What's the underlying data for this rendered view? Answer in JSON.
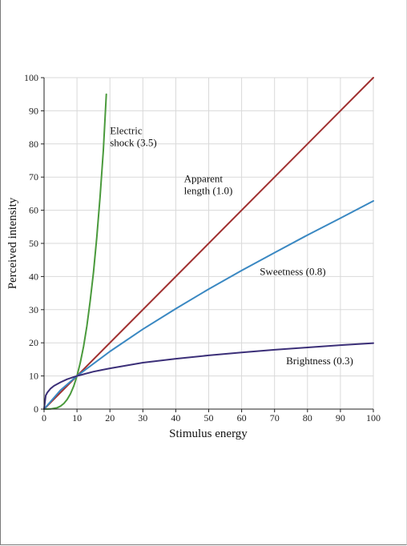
{
  "chart_data": {
    "type": "line",
    "xlabel": "Stimulus energy",
    "ylabel": "Perceived intensity",
    "xlim": [
      0,
      100
    ],
    "ylim": [
      0,
      100
    ],
    "xticks": [
      0,
      10,
      20,
      30,
      40,
      50,
      60,
      70,
      80,
      90,
      100
    ],
    "yticks": [
      0,
      10,
      20,
      30,
      40,
      50,
      60,
      70,
      80,
      90,
      100
    ],
    "grid": true,
    "series": [
      {
        "key": "electric",
        "name": "Electric shock (3.5)",
        "color": "#4a9a3c",
        "x": [
          0,
          2,
          4,
          5,
          6,
          7,
          8,
          9,
          10,
          11,
          12,
          13,
          14,
          15,
          16,
          17,
          18,
          18.9
        ],
        "y": [
          0,
          0.04,
          0.4,
          0.9,
          1.7,
          2.9,
          4.6,
          6.9,
          10,
          14,
          18.9,
          25,
          32.5,
          41.3,
          51.8,
          64,
          78.1,
          95
        ]
      },
      {
        "key": "length",
        "name": "Apparent length (1.0)",
        "color": "#a03030",
        "x": [
          0,
          100
        ],
        "y": [
          0,
          100
        ]
      },
      {
        "key": "sweetness",
        "name": "Sweetness (0.8)",
        "color": "#3a88c2",
        "x": [
          0,
          5,
          10,
          20,
          30,
          40,
          50,
          60,
          70,
          80,
          90,
          100
        ],
        "y": [
          0,
          5.7,
          10,
          17.4,
          24.1,
          30.3,
          36.2,
          41.8,
          47.2,
          52.5,
          57.6,
          62.8
        ]
      },
      {
        "key": "brightness",
        "name": "Brightness (0.3)",
        "color": "#3b2f78",
        "x": [
          0,
          0.5,
          1,
          2,
          3,
          5,
          7,
          10,
          15,
          20,
          30,
          40,
          50,
          60,
          70,
          80,
          90,
          100
        ],
        "y": [
          0,
          4.1,
          5,
          6.2,
          7.0,
          8.1,
          9.0,
          10,
          11.3,
          12.3,
          14.0,
          15.2,
          16.2,
          17.1,
          17.9,
          18.6,
          19.3,
          19.9
        ]
      }
    ],
    "annotations": [
      {
        "key": "electric",
        "lines": [
          "Electric",
          "shock (3.5)"
        ],
        "x": 20,
        "y": 83
      },
      {
        "key": "length",
        "lines": [
          "Apparent",
          "length (1.0)"
        ],
        "x": 42.5,
        "y": 68.5
      },
      {
        "key": "sweetness",
        "lines": [
          "Sweetness (0.8)"
        ],
        "x": 65.5,
        "y": 40.5
      },
      {
        "key": "brightness",
        "lines": [
          "Brightness (0.3)"
        ],
        "x": 73.5,
        "y": 13.5
      }
    ]
  }
}
